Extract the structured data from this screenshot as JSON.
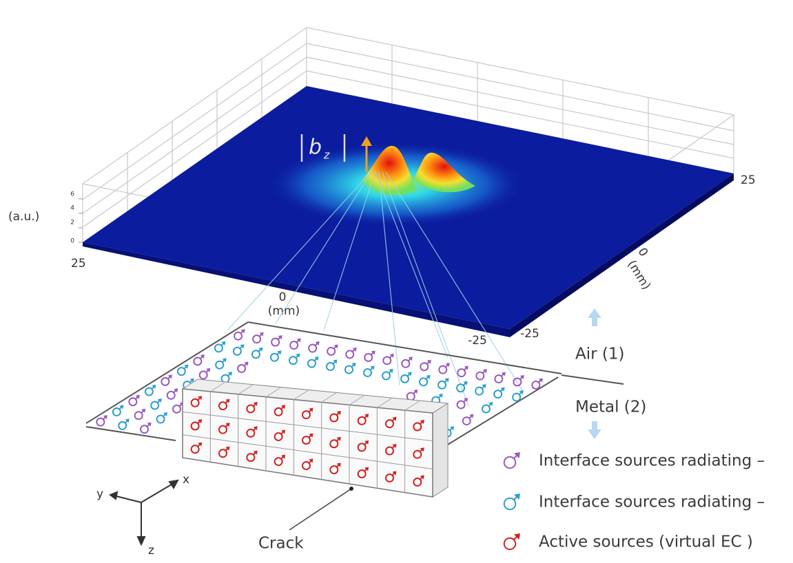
{
  "surface_plot": {
    "magnitude_label": {
      "base": "b",
      "subscript": "z"
    },
    "z_unit": "(a.u.)",
    "z_ticks": [
      "6",
      "4",
      "2",
      "0"
    ],
    "x_ticks": [
      "25",
      "0",
      "-25"
    ],
    "x_unit": "(mm)",
    "y_ticks": [
      "25",
      "0",
      "-25"
    ],
    "y_unit": "(mm)"
  },
  "layers": {
    "air": "Air (1)",
    "metal": "Metal (2)"
  },
  "crack_label": "Crack",
  "axes": {
    "x": "x",
    "y": "y",
    "z": "z"
  },
  "legend": [
    "Interface sources radiating –",
    "Interface sources radiating –",
    "Active sources (virtual EC )"
  ]
}
